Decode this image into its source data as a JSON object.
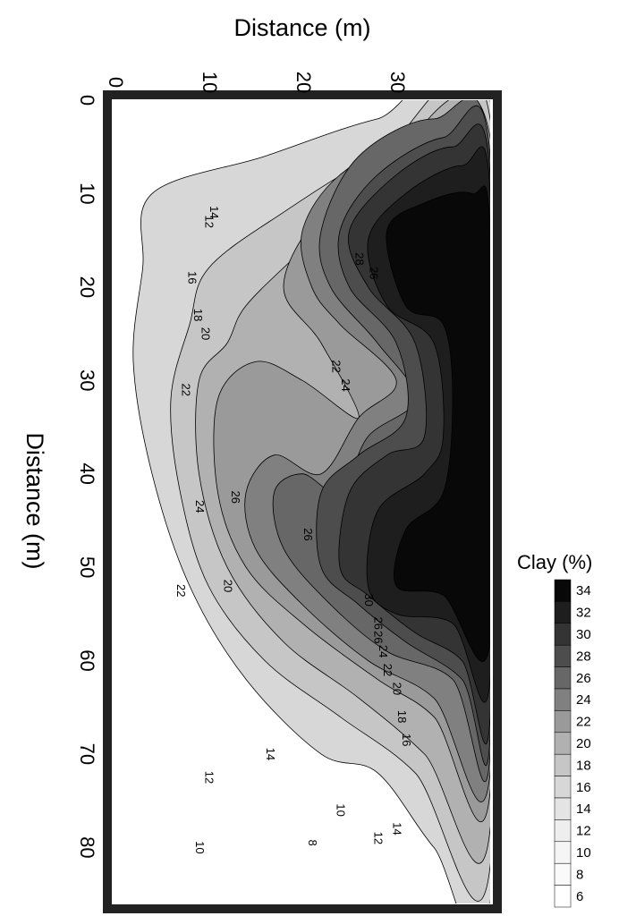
{
  "chart_data": {
    "type": "heatmap",
    "title": "",
    "top_axis": {
      "label": "Distance (m)",
      "ticks": [
        0,
        10,
        20,
        30
      ],
      "range": [
        0,
        40
      ]
    },
    "left_axis": {
      "label": "Distance (m)",
      "ticks": [
        0,
        10,
        20,
        30,
        40,
        50,
        60,
        70,
        80
      ],
      "range": [
        0,
        86
      ]
    },
    "colorbar": {
      "title": "Clay (%)",
      "levels": [
        34,
        32,
        30,
        28,
        26,
        24,
        22,
        20,
        18,
        16,
        14,
        12,
        10,
        8,
        6
      ],
      "colors": [
        "#080808",
        "#1e1e1e",
        "#343434",
        "#4d4d4d",
        "#676767",
        "#808080",
        "#9a9a9a",
        "#b1b1b1",
        "#c6c6c6",
        "#d7d7d7",
        "#e4e4e4",
        "#eeeeee",
        "#f5f5f5",
        "#fafafa",
        "#ffffff"
      ]
    },
    "grid": false,
    "legend_position": "right",
    "contour_labels": [
      {
        "text": "12",
        "x": 10.0,
        "y": 13.0
      },
      {
        "text": "14",
        "x": 10.5,
        "y": 12.0
      },
      {
        "text": "16",
        "x": 8.2,
        "y": 19.0
      },
      {
        "text": "18",
        "x": 8.8,
        "y": 23.0
      },
      {
        "text": "20",
        "x": 9.6,
        "y": 25.0
      },
      {
        "text": "22",
        "x": 7.5,
        "y": 31.0
      },
      {
        "text": "22",
        "x": 23.5,
        "y": 28.5
      },
      {
        "text": "24",
        "x": 24.5,
        "y": 30.5
      },
      {
        "text": "24",
        "x": 9.0,
        "y": 43.5
      },
      {
        "text": "26",
        "x": 12.8,
        "y": 42.5
      },
      {
        "text": "26",
        "x": 20.5,
        "y": 46.5
      },
      {
        "text": "26",
        "x": 27.5,
        "y": 18.5
      },
      {
        "text": "28",
        "x": 26.0,
        "y": 17.0
      },
      {
        "text": "22",
        "x": 7.0,
        "y": 52.5
      },
      {
        "text": "20",
        "x": 12.0,
        "y": 52.0
      },
      {
        "text": "26",
        "x": 28.0,
        "y": 56.0
      },
      {
        "text": "26",
        "x": 28.0,
        "y": 57.5
      },
      {
        "text": "24",
        "x": 28.5,
        "y": 59.0
      },
      {
        "text": "22",
        "x": 29.0,
        "y": 61.0
      },
      {
        "text": "20",
        "x": 30.0,
        "y": 63.0
      },
      {
        "text": "18",
        "x": 30.5,
        "y": 66.0
      },
      {
        "text": "16",
        "x": 31.0,
        "y": 68.5
      },
      {
        "text": "14",
        "x": 16.5,
        "y": 70.0
      },
      {
        "text": "12",
        "x": 10.0,
        "y": 72.5
      },
      {
        "text": "10",
        "x": 24.0,
        "y": 76.0
      },
      {
        "text": "10",
        "x": 9.0,
        "y": 80.0
      },
      {
        "text": "8",
        "x": 21.0,
        "y": 79.5
      },
      {
        "text": "12",
        "x": 28.0,
        "y": 79.0
      },
      {
        "text": "14",
        "x": 30.0,
        "y": 78.0
      },
      {
        "text": "30",
        "x": 27.0,
        "y": 53.5
      }
    ],
    "regions": [
      {
        "level": 16,
        "points": [
          [
            4,
            10
          ],
          [
            16,
            6
          ],
          [
            28,
            2
          ],
          [
            40,
            0
          ],
          [
            40,
            86
          ],
          [
            34,
            80
          ],
          [
            28,
            72
          ],
          [
            22,
            70
          ],
          [
            14,
            62
          ],
          [
            8,
            52
          ],
          [
            4,
            40
          ],
          [
            2,
            28
          ],
          [
            3,
            18
          ]
        ]
      },
      {
        "level": 18,
        "points": [
          [
            10,
            18
          ],
          [
            18,
            12
          ],
          [
            28,
            6
          ],
          [
            40,
            2
          ],
          [
            40,
            82
          ],
          [
            32,
            72
          ],
          [
            24,
            66
          ],
          [
            16,
            60
          ],
          [
            10,
            52
          ],
          [
            7,
            42
          ],
          [
            6,
            32
          ],
          [
            8,
            24
          ]
        ]
      },
      {
        "level": 20,
        "points": [
          [
            14,
            22
          ],
          [
            20,
            16
          ],
          [
            28,
            8
          ],
          [
            40,
            4
          ],
          [
            40,
            78
          ],
          [
            33,
            70
          ],
          [
            26,
            64
          ],
          [
            18,
            58
          ],
          [
            12,
            50
          ],
          [
            9,
            40
          ],
          [
            9,
            30
          ],
          [
            12,
            26
          ]
        ]
      },
      {
        "level": 22,
        "points": [
          [
            18,
            20
          ],
          [
            22,
            12
          ],
          [
            30,
            6
          ],
          [
            40,
            6
          ],
          [
            40,
            74
          ],
          [
            34,
            66
          ],
          [
            28,
            62
          ],
          [
            20,
            56
          ],
          [
            14,
            50
          ],
          [
            11,
            42
          ],
          [
            11,
            32
          ],
          [
            15,
            28
          ],
          [
            20,
            30
          ],
          [
            26,
            34
          ],
          [
            22,
            26
          ]
        ]
      },
      {
        "level": 24,
        "points": [
          [
            20,
            14
          ],
          [
            24,
            8
          ],
          [
            32,
            4
          ],
          [
            40,
            6
          ],
          [
            40,
            72
          ],
          [
            34,
            64
          ],
          [
            27,
            60
          ],
          [
            20,
            54
          ],
          [
            15,
            48
          ],
          [
            14,
            42
          ],
          [
            17,
            38
          ],
          [
            22,
            40
          ],
          [
            26,
            34
          ],
          [
            30,
            30
          ],
          [
            24,
            24
          ],
          [
            21,
            20
          ]
        ]
      },
      {
        "level": 26,
        "points": [
          [
            22,
            14
          ],
          [
            26,
            6
          ],
          [
            34,
            2
          ],
          [
            40,
            6
          ],
          [
            40,
            70
          ],
          [
            36,
            62
          ],
          [
            29,
            59
          ],
          [
            23,
            54
          ],
          [
            18,
            48
          ],
          [
            17,
            42
          ],
          [
            20,
            40
          ],
          [
            24,
            42
          ],
          [
            27,
            36
          ],
          [
            32,
            32
          ],
          [
            28,
            26
          ],
          [
            23,
            20
          ]
        ]
      },
      {
        "level": 28,
        "points": [
          [
            24,
            14
          ],
          [
            28,
            8
          ],
          [
            35,
            4
          ],
          [
            40,
            6
          ],
          [
            40,
            68
          ],
          [
            37,
            62
          ],
          [
            31,
            58
          ],
          [
            26,
            54
          ],
          [
            22,
            50
          ],
          [
            22,
            42
          ],
          [
            26,
            38
          ],
          [
            31,
            34
          ],
          [
            30,
            26
          ],
          [
            25,
            20
          ]
        ]
      },
      {
        "level": 30,
        "points": [
          [
            25,
            14
          ],
          [
            30,
            8
          ],
          [
            36,
            5
          ],
          [
            40,
            8
          ],
          [
            40,
            66
          ],
          [
            37,
            60
          ],
          [
            32,
            57
          ],
          [
            27,
            53
          ],
          [
            24,
            50
          ],
          [
            25,
            42
          ],
          [
            29,
            38
          ],
          [
            33,
            36
          ],
          [
            32,
            26
          ],
          [
            27,
            20
          ]
        ]
      },
      {
        "level": 32,
        "points": [
          [
            27,
            15
          ],
          [
            31,
            10
          ],
          [
            37,
            7
          ],
          [
            40,
            10
          ],
          [
            40,
            62
          ],
          [
            36,
            56
          ],
          [
            30,
            55
          ],
          [
            27,
            52
          ],
          [
            28,
            44
          ],
          [
            33,
            40
          ],
          [
            35,
            36
          ],
          [
            34,
            26
          ],
          [
            29,
            22
          ]
        ]
      },
      {
        "level": 34,
        "points": [
          [
            29,
            14
          ],
          [
            33,
            11
          ],
          [
            38,
            10
          ],
          [
            40,
            14
          ],
          [
            40,
            58
          ],
          [
            35,
            53
          ],
          [
            30,
            52
          ],
          [
            31,
            46
          ],
          [
            35,
            42
          ],
          [
            36,
            32
          ],
          [
            35,
            24
          ],
          [
            31,
            22
          ]
        ]
      }
    ]
  }
}
